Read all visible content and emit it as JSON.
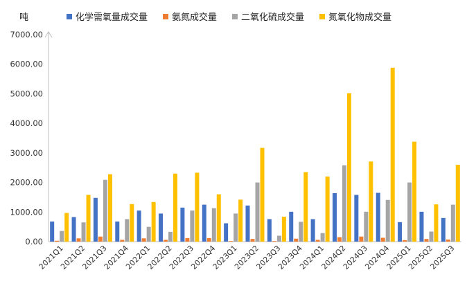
{
  "chart_data": {
    "type": "bar",
    "unit_label": "吨",
    "categories": [
      "2021Q1",
      "2021Q2",
      "2021Q3",
      "2021Q4",
      "2022Q1",
      "2022Q2",
      "2022Q3",
      "2022Q4",
      "2023Q1",
      "2023Q2",
      "2023Q3",
      "2023Q4",
      "2024Q1",
      "2024Q2",
      "2024Q3",
      "2024Q4",
      "2025Q1",
      "2025Q2",
      "2025Q3"
    ],
    "series": [
      {
        "name": "化学需氧量成交量",
        "color": "#4472C4",
        "values": [
          680,
          830,
          1480,
          680,
          1050,
          950,
          1150,
          1250,
          620,
          1220,
          760,
          1010,
          760,
          1640,
          1580,
          1650,
          660,
          1010,
          800
        ]
      },
      {
        "name": "氨氮成交量",
        "color": "#ED7D31",
        "values": [
          30,
          110,
          170,
          60,
          110,
          60,
          120,
          120,
          20,
          90,
          20,
          100,
          60,
          150,
          170,
          130,
          50,
          90,
          70
        ]
      },
      {
        "name": "二氧化硫成交量",
        "color": "#A5A5A5",
        "values": [
          360,
          650,
          2090,
          760,
          500,
          330,
          1050,
          1130,
          950,
          2000,
          200,
          670,
          290,
          2580,
          1010,
          1410,
          2000,
          340,
          1250
        ]
      },
      {
        "name": "氮氧化物成交量",
        "color": "#FFC000",
        "values": [
          970,
          1580,
          2280,
          1270,
          1340,
          2300,
          2330,
          1600,
          1420,
          3170,
          840,
          2350,
          2200,
          5020,
          2710,
          5880,
          3380,
          1260,
          2600
        ]
      }
    ],
    "ylim": [
      0,
      7000
    ],
    "yticks": [
      "0.00",
      "1000.00",
      "2000.00",
      "3000.00",
      "4000.00",
      "5000.00",
      "6000.00",
      "7000.00"
    ],
    "legend_position": "top",
    "grid": false
  }
}
